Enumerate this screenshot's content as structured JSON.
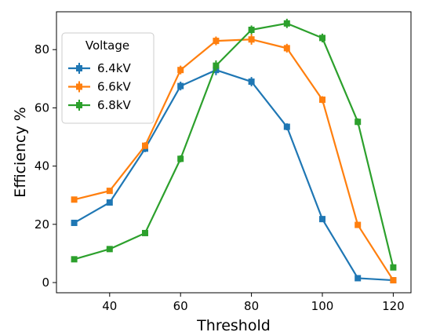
{
  "chart_data": {
    "type": "line",
    "xlabel": "Threshold",
    "ylabel": "Efficiency %",
    "xlim": [
      25,
      125
    ],
    "ylim": [
      -3.5,
      93
    ],
    "xticks": [
      40,
      60,
      80,
      100,
      120
    ],
    "yticks": [
      0,
      20,
      40,
      60,
      80
    ],
    "grid": false,
    "x": [
      30,
      40,
      50,
      60,
      70,
      80,
      90,
      100,
      110,
      120
    ],
    "legend": {
      "title": "Voltage",
      "placement": "upper left"
    },
    "series": [
      {
        "name": "6.4kV",
        "color": "#1f77b4",
        "values": [
          20.5,
          27.5,
          46.0,
          67.5,
          73.0,
          69.0,
          53.5,
          21.8,
          1.5,
          0.8
        ],
        "errors": [
          0.8,
          1.0,
          1.2,
          1.5,
          1.8,
          1.6,
          1.2,
          1.0,
          0.6,
          0.5
        ]
      },
      {
        "name": "6.6kV",
        "color": "#ff7f0e",
        "values": [
          28.5,
          31.5,
          47.0,
          73.0,
          83.0,
          83.5,
          80.5,
          62.8,
          19.8,
          0.8
        ],
        "errors": [
          0.8,
          1.0,
          1.2,
          1.5,
          1.5,
          1.8,
          1.5,
          1.2,
          1.0,
          0.5
        ]
      },
      {
        "name": "6.8kV",
        "color": "#2ca02c",
        "values": [
          8.0,
          11.5,
          17.0,
          42.5,
          74.5,
          86.8,
          89.0,
          84.0,
          55.2,
          5.2
        ],
        "errors": [
          0.6,
          0.8,
          0.9,
          1.2,
          1.8,
          1.5,
          1.6,
          1.5,
          1.2,
          0.8
        ]
      }
    ]
  }
}
